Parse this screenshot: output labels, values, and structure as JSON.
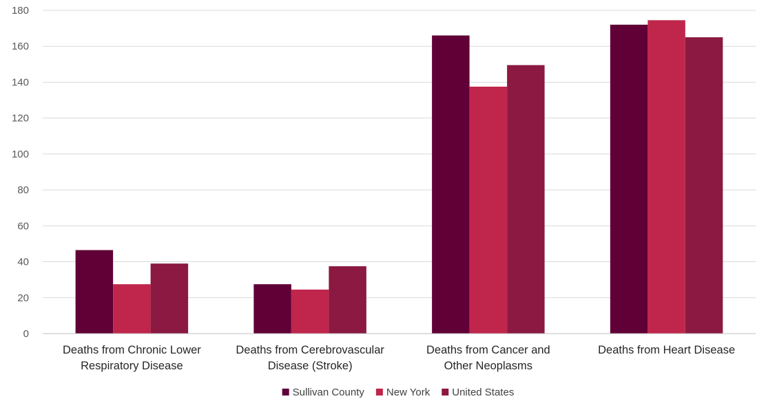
{
  "chart_data": {
    "type": "bar",
    "title": "",
    "xlabel": "",
    "ylabel": "",
    "ylim": [
      0,
      180
    ],
    "yticks": [
      0,
      20,
      40,
      60,
      80,
      100,
      120,
      140,
      160,
      180
    ],
    "grid": true,
    "legend_position": "bottom",
    "categories": [
      [
        "Deaths from Chronic Lower",
        "Respiratory Disease"
      ],
      [
        "Deaths from Cerebrovascular",
        "Disease (Stroke)"
      ],
      [
        "Deaths from Cancer and",
        "Other Neoplasms"
      ],
      [
        "Deaths from Heart Disease"
      ]
    ],
    "series": [
      {
        "name": "Sullivan County",
        "color": "#600036",
        "values": [
          46.5,
          27.5,
          166,
          172
        ]
      },
      {
        "name": "New York",
        "color": "#c0264b",
        "values": [
          27.5,
          24.5,
          137.5,
          174.5
        ]
      },
      {
        "name": "United States",
        "color": "#8b1942",
        "values": [
          39,
          37.5,
          149.5,
          165
        ]
      }
    ]
  }
}
